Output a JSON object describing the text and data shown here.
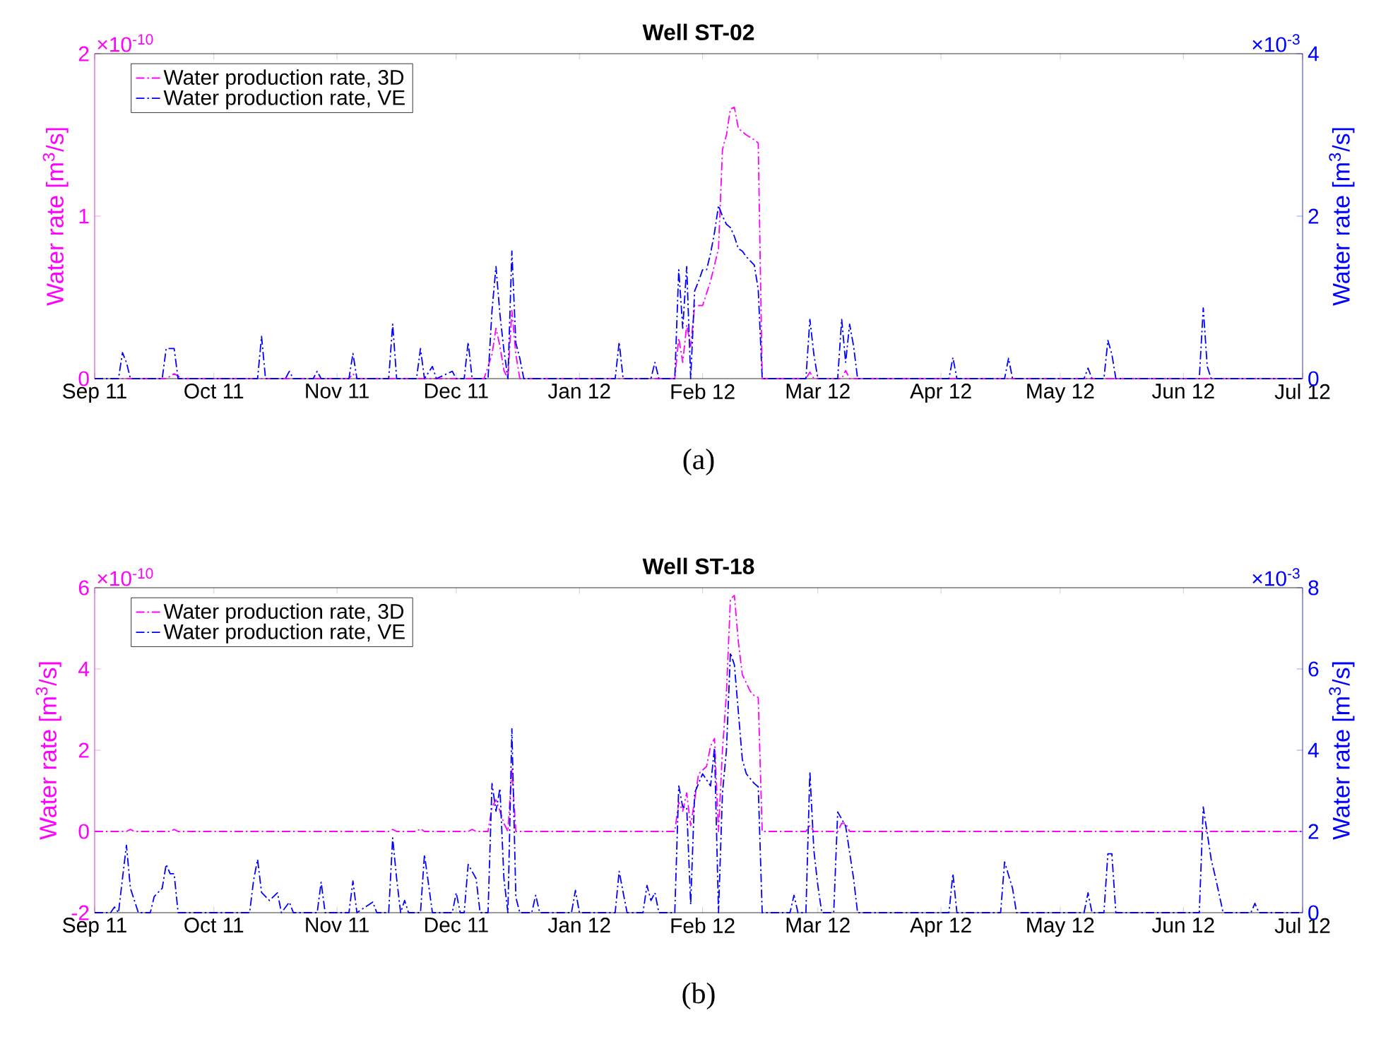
{
  "chart_data": [
    {
      "type": "line",
      "title": "Well ST-02",
      "ylabel": "Water rate [m$^{3}$/s]",
      "y2label": "Water rate [m$^{3}$/s]",
      "annotations": [
        "×10$^{-10}$",
        "×10$^{-3}$",
        "(a)"
      ],
      "xlim": [
        "2011-09-01",
        "2012-07-01"
      ],
      "xticks": [
        {
          "value": "2011-09-01",
          "label": "Sep 11"
        },
        {
          "value": "2011-10-01",
          "label": "Oct 11"
        },
        {
          "value": "2011-11-01",
          "label": "Nov 11"
        },
        {
          "value": "2011-12-01",
          "label": "Dec 11"
        },
        {
          "value": "2012-01-01",
          "label": "Jan 12"
        },
        {
          "value": "2012-02-01",
          "label": "Feb 12"
        },
        {
          "value": "2012-03-01",
          "label": "Mar 12"
        },
        {
          "value": "2012-04-01",
          "label": "Apr 12"
        },
        {
          "value": "2012-05-01",
          "label": "May 12"
        },
        {
          "value": "2012-06-01",
          "label": "Jun 12"
        },
        {
          "value": "2012-07-01",
          "label": "Jul 12"
        }
      ],
      "ylim": [
        0,
        2
      ],
      "yticks": [
        0,
        1,
        2
      ],
      "y2lim": [
        0,
        4
      ],
      "y2ticks": [
        0,
        2,
        4
      ],
      "legend": "top left",
      "line_style": "dashdot",
      "series": [
        {
          "name": "Water production rate, 3D",
          "color": "#ff00ff",
          "axis": "y",
          "x": [
            "2011-09-01",
            "2011-09-19",
            "2011-09-21",
            "2011-09-23",
            "2011-11-04",
            "2011-11-05",
            "2011-11-06",
            "2011-12-08",
            "2011-12-10",
            "2011-12-11",
            "2011-12-12",
            "2011-12-13",
            "2011-12-14",
            "2011-12-15",
            "2011-12-16",
            "2011-12-17",
            "2012-01-25",
            "2012-01-26",
            "2012-01-27",
            "2012-01-28",
            "2012-01-29",
            "2012-01-30",
            "2012-02-01",
            "2012-02-03",
            "2012-02-05",
            "2012-02-06",
            "2012-02-07",
            "2012-02-08",
            "2012-02-09",
            "2012-02-10",
            "2012-02-12",
            "2012-02-14",
            "2012-02-15",
            "2012-02-16",
            "2012-02-27",
            "2012-02-28",
            "2012-02-29",
            "2012-03-07",
            "2012-03-08",
            "2012-03-09",
            "2012-07-01"
          ],
          "values": [
            0,
            0,
            0.03,
            0,
            0,
            0.03,
            0,
            0,
            0.15,
            0.31,
            0.2,
            0.05,
            0,
            0.42,
            0.15,
            0,
            0,
            0.25,
            0.1,
            0.33,
            0.2,
            0.45,
            0.45,
            0.6,
            0.8,
            1.41,
            1.5,
            1.66,
            1.67,
            1.54,
            1.5,
            1.47,
            1.45,
            0,
            0,
            0.04,
            0,
            0,
            0.05,
            0,
            0
          ]
        },
        {
          "name": "Water production rate, VE",
          "color": "#0000ff",
          "axis": "y2",
          "x": [
            "2011-09-01",
            "2011-09-07",
            "2011-09-08",
            "2011-09-09",
            "2011-09-10",
            "2011-09-18",
            "2011-09-19",
            "2011-09-21",
            "2011-09-22",
            "2011-10-12",
            "2011-10-13",
            "2011-10-14",
            "2011-10-19",
            "2011-10-20",
            "2011-10-21",
            "2011-10-26",
            "2011-10-27",
            "2011-10-28",
            "2011-11-04",
            "2011-11-05",
            "2011-11-06",
            "2011-11-14",
            "2011-11-15",
            "2011-11-16",
            "2011-11-21",
            "2011-11-22",
            "2011-11-23",
            "2011-11-25",
            "2011-11-26",
            "2011-11-30",
            "2011-12-01",
            "2011-12-03",
            "2011-12-04",
            "2011-12-05",
            "2011-12-09",
            "2011-12-10",
            "2011-12-11",
            "2011-12-12",
            "2011-12-13",
            "2011-12-14",
            "2011-12-15",
            "2011-12-16",
            "2011-12-17",
            "2011-12-18",
            "2012-01-10",
            "2012-01-11",
            "2012-01-12",
            "2012-01-19",
            "2012-01-20",
            "2012-01-21",
            "2012-01-25",
            "2012-01-26",
            "2012-01-27",
            "2012-01-28",
            "2012-01-29",
            "2012-01-30",
            "2012-01-31",
            "2012-02-01",
            "2012-02-02",
            "2012-02-03",
            "2012-02-04",
            "2012-02-05",
            "2012-02-06",
            "2012-02-07",
            "2012-02-08",
            "2012-02-09",
            "2012-02-10",
            "2012-02-11",
            "2012-02-12",
            "2012-02-13",
            "2012-02-14",
            "2012-02-15",
            "2012-02-16",
            "2012-02-27",
            "2012-02-28",
            "2012-02-29",
            "2012-03-01",
            "2012-03-06",
            "2012-03-07",
            "2012-03-08",
            "2012-03-09",
            "2012-03-10",
            "2012-03-11",
            "2012-04-03",
            "2012-04-04",
            "2012-04-05",
            "2012-04-17",
            "2012-04-18",
            "2012-04-19",
            "2012-05-07",
            "2012-05-08",
            "2012-05-09",
            "2012-05-12",
            "2012-05-13",
            "2012-05-14",
            "2012-05-15",
            "2012-06-05",
            "2012-06-06",
            "2012-06-07",
            "2012-06-08",
            "2012-07-01"
          ],
          "values": [
            0,
            0,
            0.32,
            0.2,
            0,
            0,
            0.37,
            0.37,
            0,
            0,
            0.52,
            0,
            0,
            0.09,
            0,
            0,
            0.09,
            0,
            0,
            0.31,
            0,
            0,
            0.67,
            0,
            0,
            0.37,
            0,
            0.15,
            0,
            0.09,
            0,
            0,
            0.45,
            0,
            0,
            0.84,
            1.38,
            0.79,
            0.35,
            0,
            1.57,
            0.44,
            0.25,
            0,
            0,
            0.45,
            0,
            0,
            0.2,
            0,
            0,
            1.34,
            0.62,
            1.38,
            0,
            1.08,
            1.2,
            1.34,
            1.34,
            1.54,
            1.8,
            2.13,
            2.0,
            1.9,
            1.86,
            1.75,
            1.6,
            1.57,
            1.5,
            1.45,
            1.4,
            1.1,
            0,
            0,
            0.73,
            0.3,
            0,
            0,
            0.73,
            0.2,
            0.67,
            0.4,
            0,
            0,
            0.26,
            0,
            0,
            0.25,
            0,
            0,
            0.13,
            0,
            0,
            0.47,
            0.3,
            0,
            0,
            0.87,
            0.15,
            0,
            0
          ]
        }
      ]
    },
    {
      "type": "line",
      "title": "Well ST-18",
      "ylabel": "Water rate [m$^{3}$/s]",
      "y2label": "Water rate [m$^{3}$/s]",
      "annotations": [
        "×10$^{-10}$",
        "×10$^{-3}$",
        "(b)"
      ],
      "xlim": [
        "2011-09-01",
        "2012-07-01"
      ],
      "xticks": [
        {
          "value": "2011-09-01",
          "label": "Sep 11"
        },
        {
          "value": "2011-10-01",
          "label": "Oct 11"
        },
        {
          "value": "2011-11-01",
          "label": "Nov 11"
        },
        {
          "value": "2011-12-01",
          "label": "Dec 11"
        },
        {
          "value": "2012-01-01",
          "label": "Jan 12"
        },
        {
          "value": "2012-02-01",
          "label": "Feb 12"
        },
        {
          "value": "2012-03-01",
          "label": "Mar 12"
        },
        {
          "value": "2012-04-01",
          "label": "Apr 12"
        },
        {
          "value": "2012-05-01",
          "label": "May 12"
        },
        {
          "value": "2012-06-01",
          "label": "Jun 12"
        },
        {
          "value": "2012-07-01",
          "label": "Jul 12"
        }
      ],
      "ylim": [
        -2,
        6
      ],
      "yticks": [
        -2,
        0,
        2,
        4,
        6
      ],
      "y2lim": [
        0,
        8
      ],
      "y2ticks": [
        0,
        2,
        4,
        6,
        8
      ],
      "legend": "top left",
      "line_style": "dashdot",
      "series": [
        {
          "name": "Water production rate, 3D",
          "color": "#ff00ff",
          "axis": "y",
          "x": [
            "2011-09-01",
            "2011-09-09",
            "2011-09-10",
            "2011-09-11",
            "2011-09-20",
            "2011-09-21",
            "2011-09-22",
            "2011-11-14",
            "2011-11-15",
            "2011-11-16",
            "2011-11-21",
            "2011-11-22",
            "2011-11-23",
            "2011-12-04",
            "2011-12-05",
            "2011-12-06",
            "2011-12-09",
            "2011-12-10",
            "2011-12-11",
            "2011-12-12",
            "2011-12-13",
            "2011-12-14",
            "2011-12-15",
            "2011-12-16",
            "2012-01-25",
            "2012-01-26",
            "2012-01-27",
            "2012-01-28",
            "2012-01-29",
            "2012-01-31",
            "2012-02-02",
            "2012-02-03",
            "2012-02-04",
            "2012-02-05",
            "2012-02-06",
            "2012-02-07",
            "2012-02-08",
            "2012-02-09",
            "2012-02-10",
            "2012-02-11",
            "2012-02-13",
            "2012-02-14",
            "2012-02-15",
            "2012-02-16",
            "2012-02-27",
            "2012-02-28",
            "2012-02-29",
            "2012-03-06",
            "2012-03-07",
            "2012-03-08",
            "2012-03-09",
            "2012-07-01"
          ],
          "values": [
            0,
            0,
            0.05,
            0,
            0,
            0.05,
            0,
            0,
            0.05,
            0,
            0,
            0.07,
            0,
            0,
            0.05,
            0,
            0,
            0.6,
            0.78,
            0.5,
            0.2,
            0,
            1.53,
            0,
            0,
            0.72,
            0.5,
            0.95,
            0.14,
            1.42,
            1.6,
            2.1,
            2.29,
            0,
            2.0,
            3.4,
            5.72,
            5.81,
            4.67,
            3.86,
            3.45,
            3.34,
            3.3,
            0,
            0,
            0.14,
            0,
            0,
            0.2,
            0.2,
            0,
            0
          ]
        },
        {
          "name": "Water production rate, VE",
          "color": "#0000ff",
          "axis": "y2",
          "x": [
            "2011-09-01",
            "2011-09-05",
            "2011-09-06",
            "2011-09-07",
            "2011-09-08",
            "2011-09-09",
            "2011-09-10",
            "2011-09-11",
            "2011-09-12",
            "2011-09-15",
            "2011-09-16",
            "2011-09-18",
            "2011-09-19",
            "2011-09-20",
            "2011-09-21",
            "2011-09-22",
            "2011-10-10",
            "2011-10-11",
            "2011-10-12",
            "2011-10-13",
            "2011-10-15",
            "2011-10-17",
            "2011-10-18",
            "2011-10-20",
            "2011-10-21",
            "2011-10-27",
            "2011-10-28",
            "2011-10-29",
            "2011-11-04",
            "2011-11-05",
            "2011-11-06",
            "2011-11-10",
            "2011-11-11",
            "2011-11-14",
            "2011-11-15",
            "2011-11-16",
            "2011-11-17",
            "2011-11-18",
            "2011-11-19",
            "2011-11-22",
            "2011-11-23",
            "2011-11-24",
            "2011-11-25",
            "2011-11-30",
            "2011-12-01",
            "2011-12-02",
            "2011-12-03",
            "2011-12-04",
            "2011-12-06",
            "2011-12-07",
            "2011-12-09",
            "2011-12-10",
            "2011-12-11",
            "2011-12-12",
            "2011-12-13",
            "2011-12-14",
            "2011-12-15",
            "2011-12-16",
            "2011-12-17",
            "2011-12-20",
            "2011-12-21",
            "2011-12-22",
            "2011-12-30",
            "2011-12-31",
            "2012-01-01",
            "2012-01-10",
            "2012-01-11",
            "2012-01-12",
            "2012-01-13",
            "2012-01-17",
            "2012-01-18",
            "2012-01-19",
            "2012-01-20",
            "2012-01-21",
            "2012-01-25",
            "2012-01-26",
            "2012-01-27",
            "2012-01-28",
            "2012-01-29",
            "2012-01-30",
            "2012-02-01",
            "2012-02-03",
            "2012-02-04",
            "2012-02-05",
            "2012-02-06",
            "2012-02-07",
            "2012-02-08",
            "2012-02-09",
            "2012-02-10",
            "2012-02-11",
            "2012-02-12",
            "2012-02-14",
            "2012-02-15",
            "2012-02-16",
            "2012-02-23",
            "2012-02-24",
            "2012-02-25",
            "2012-02-27",
            "2012-02-28",
            "2012-02-29",
            "2012-03-01",
            "2012-03-02",
            "2012-03-05",
            "2012-03-06",
            "2012-03-08",
            "2012-03-10",
            "2012-03-11",
            "2012-04-03",
            "2012-04-04",
            "2012-04-05",
            "2012-04-16",
            "2012-04-17",
            "2012-04-19",
            "2012-04-20",
            "2012-05-07",
            "2012-05-08",
            "2012-05-09",
            "2012-05-12",
            "2012-05-13",
            "2012-05-14",
            "2012-05-15",
            "2012-06-05",
            "2012-06-06",
            "2012-06-08",
            "2012-06-09",
            "2012-06-11",
            "2012-06-18",
            "2012-06-19",
            "2012-06-20",
            "2012-07-01"
          ],
          "values": [
            0,
            0,
            0.14,
            0,
            0.84,
            1.66,
            0.6,
            0.3,
            0,
            0,
            0.4,
            0.6,
            1.19,
            0.96,
            0.96,
            0,
            0,
            0.8,
            1.31,
            0.5,
            0.3,
            0.49,
            0,
            0.26,
            0,
            0,
            0.75,
            0,
            0,
            0.78,
            0,
            0.26,
            0,
            0,
            1.84,
            0.84,
            0,
            0.3,
            0,
            0,
            1.43,
            0.72,
            0,
            0,
            0.49,
            0,
            0,
            1.19,
            0.84,
            0,
            0,
            3.18,
            2.5,
            3.06,
            0.84,
            0,
            4.53,
            0.38,
            0,
            0,
            0.43,
            0,
            0,
            0.55,
            0,
            0,
            1.02,
            0.5,
            0,
            0,
            0.67,
            0.3,
            0.49,
            0,
            0,
            3.12,
            2.6,
            2.6,
            0.2,
            2.95,
            3.42,
            3.12,
            4.06,
            0,
            2.95,
            4.0,
            6.4,
            6.1,
            4.94,
            3.77,
            3.42,
            3.18,
            3.1,
            0,
            0,
            0.43,
            0,
            0,
            3.47,
            1.54,
            0.67,
            0,
            0,
            2.48,
            2.13,
            0.84,
            0,
            0,
            0.96,
            0,
            0,
            1.25,
            0.6,
            0,
            0,
            0.49,
            0,
            0,
            1.45,
            1.45,
            0,
            0,
            2.6,
            1.31,
            0.9,
            0,
            0,
            0.23,
            0,
            0
          ]
        }
      ]
    }
  ]
}
